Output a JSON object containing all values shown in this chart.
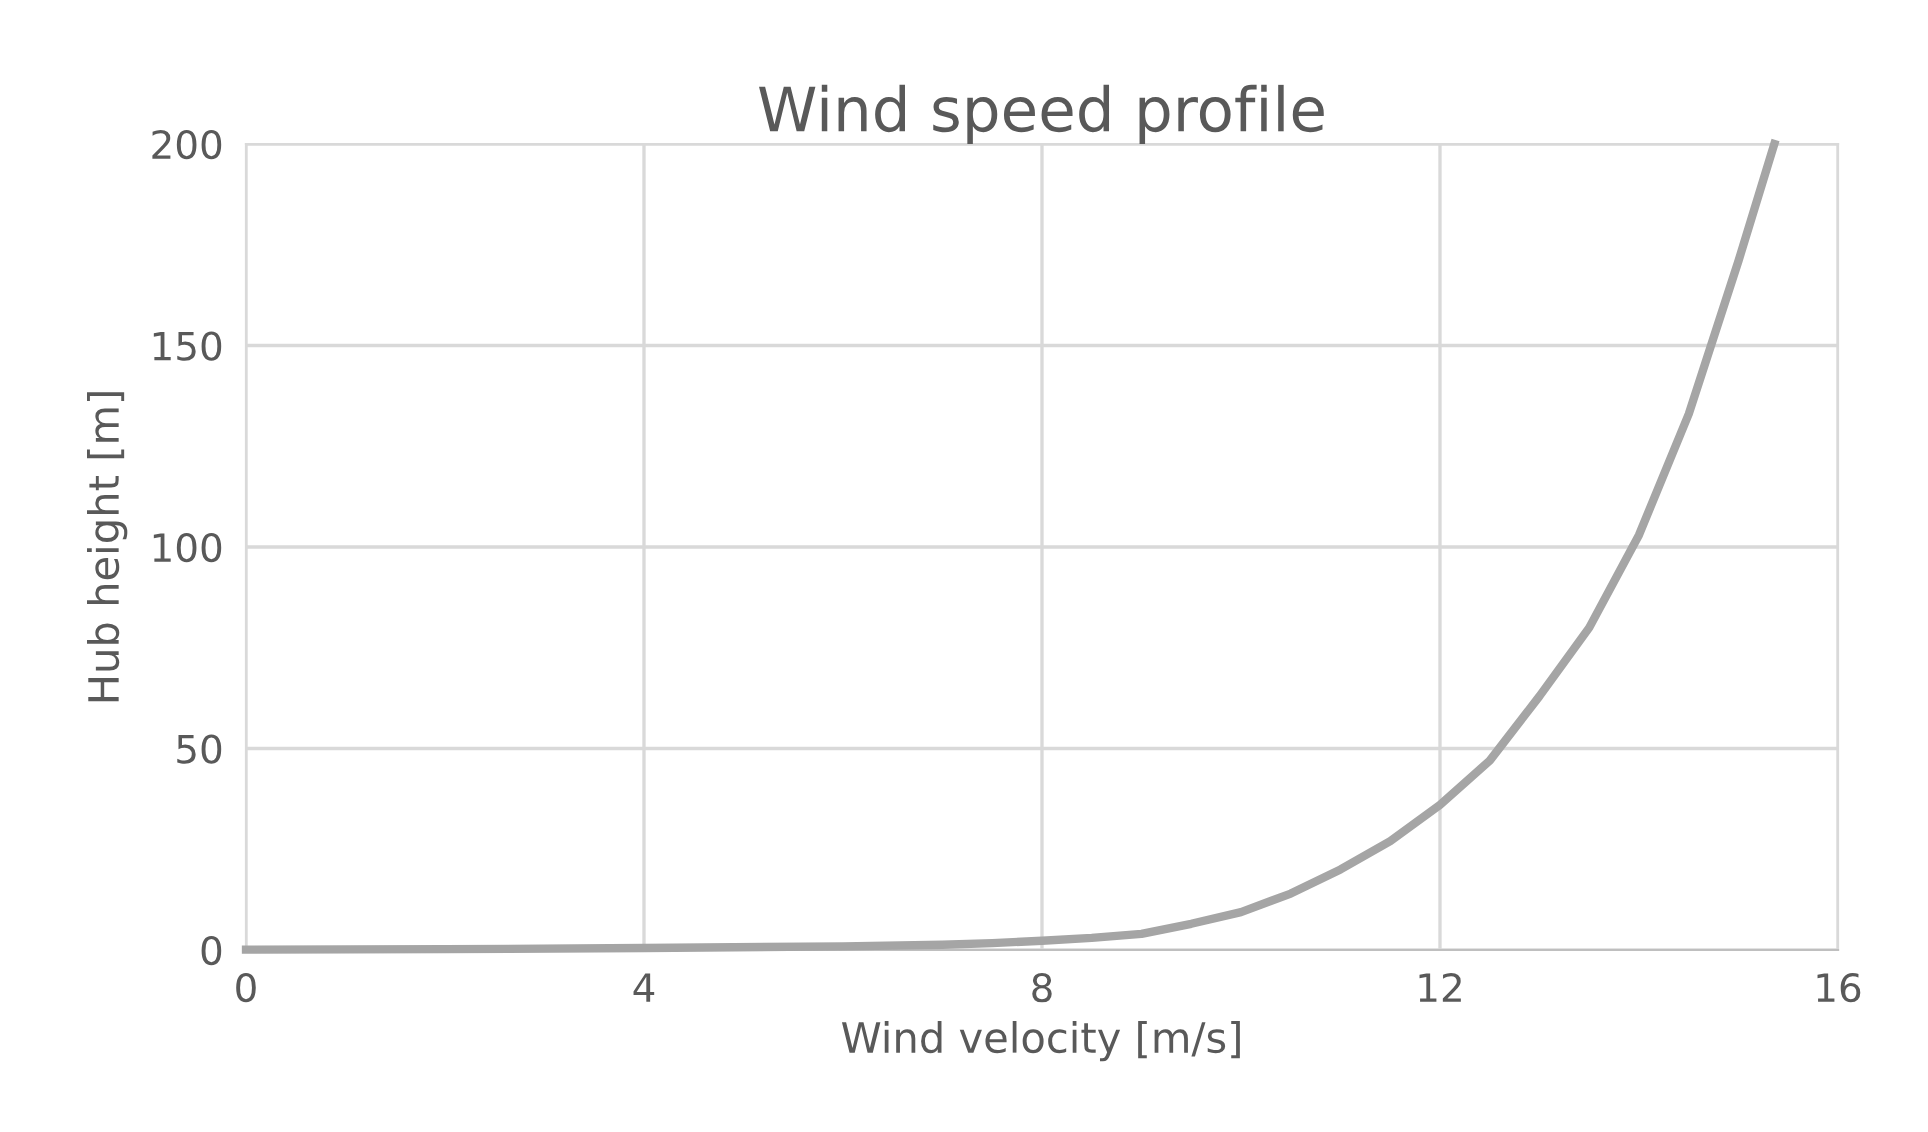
{
  "chart_data": {
    "type": "line",
    "title": "Wind speed profile",
    "xlabel": "Wind velocity [m/s]",
    "ylabel": "Hub height [m]",
    "x": [
      0,
      2,
      4,
      6,
      7,
      7.5,
      8,
      8.5,
      9,
      9.5,
      10,
      10.5,
      11,
      11.5,
      12,
      12.5,
      13,
      13.5,
      14,
      14.5,
      15,
      15.36
    ],
    "series": [
      {
        "color": "#a5a5a5",
        "values": [
          0.1,
          0.2,
          0.5,
          0.9,
          1.3,
          1.7,
          2.3,
          3,
          4,
          6.5,
          9.4,
          14,
          20,
          27,
          36,
          47,
          63,
          80,
          103,
          133,
          171,
          200
        ]
      }
    ],
    "xlim": [
      0,
      16
    ],
    "xticks": [
      0,
      4,
      8,
      12,
      16
    ],
    "ylim": [
      0,
      200
    ],
    "yticks": [
      0,
      50,
      100,
      150,
      200
    ],
    "grid": true,
    "marker": "none",
    "line_style": "solid"
  }
}
